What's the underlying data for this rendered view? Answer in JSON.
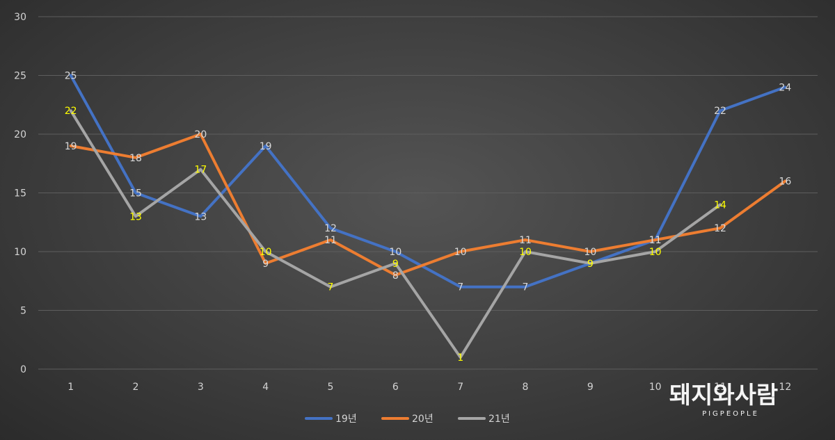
{
  "chart_data": {
    "type": "line",
    "categories": [
      "1",
      "2",
      "3",
      "4",
      "5",
      "6",
      "7",
      "8",
      "9",
      "10",
      "11",
      "12"
    ],
    "ylim": [
      0,
      30
    ],
    "yticks": [
      0,
      5,
      10,
      15,
      20,
      25,
      30
    ],
    "grid": true,
    "legend_position": "bottom",
    "series": [
      {
        "name": "19년",
        "color": "#4472c4",
        "label_color": "#d9d9d9",
        "values": [
          25,
          15,
          13,
          19,
          12,
          10,
          7,
          7,
          9,
          11,
          22,
          24
        ]
      },
      {
        "name": "20년",
        "color": "#ed7d31",
        "label_color": "#d9d9d9",
        "values": [
          19,
          18,
          20,
          9,
          11,
          8,
          10,
          11,
          10,
          11,
          12,
          16
        ]
      },
      {
        "name": "21년",
        "color": "#a5a5a5",
        "label_color": "#ffff00",
        "values": [
          22,
          13,
          17,
          10,
          7,
          9,
          1,
          10,
          9,
          10,
          14,
          null
        ]
      }
    ]
  },
  "watermark": {
    "main": "돼지와사람",
    "sub": "PIGPEOPLE"
  }
}
